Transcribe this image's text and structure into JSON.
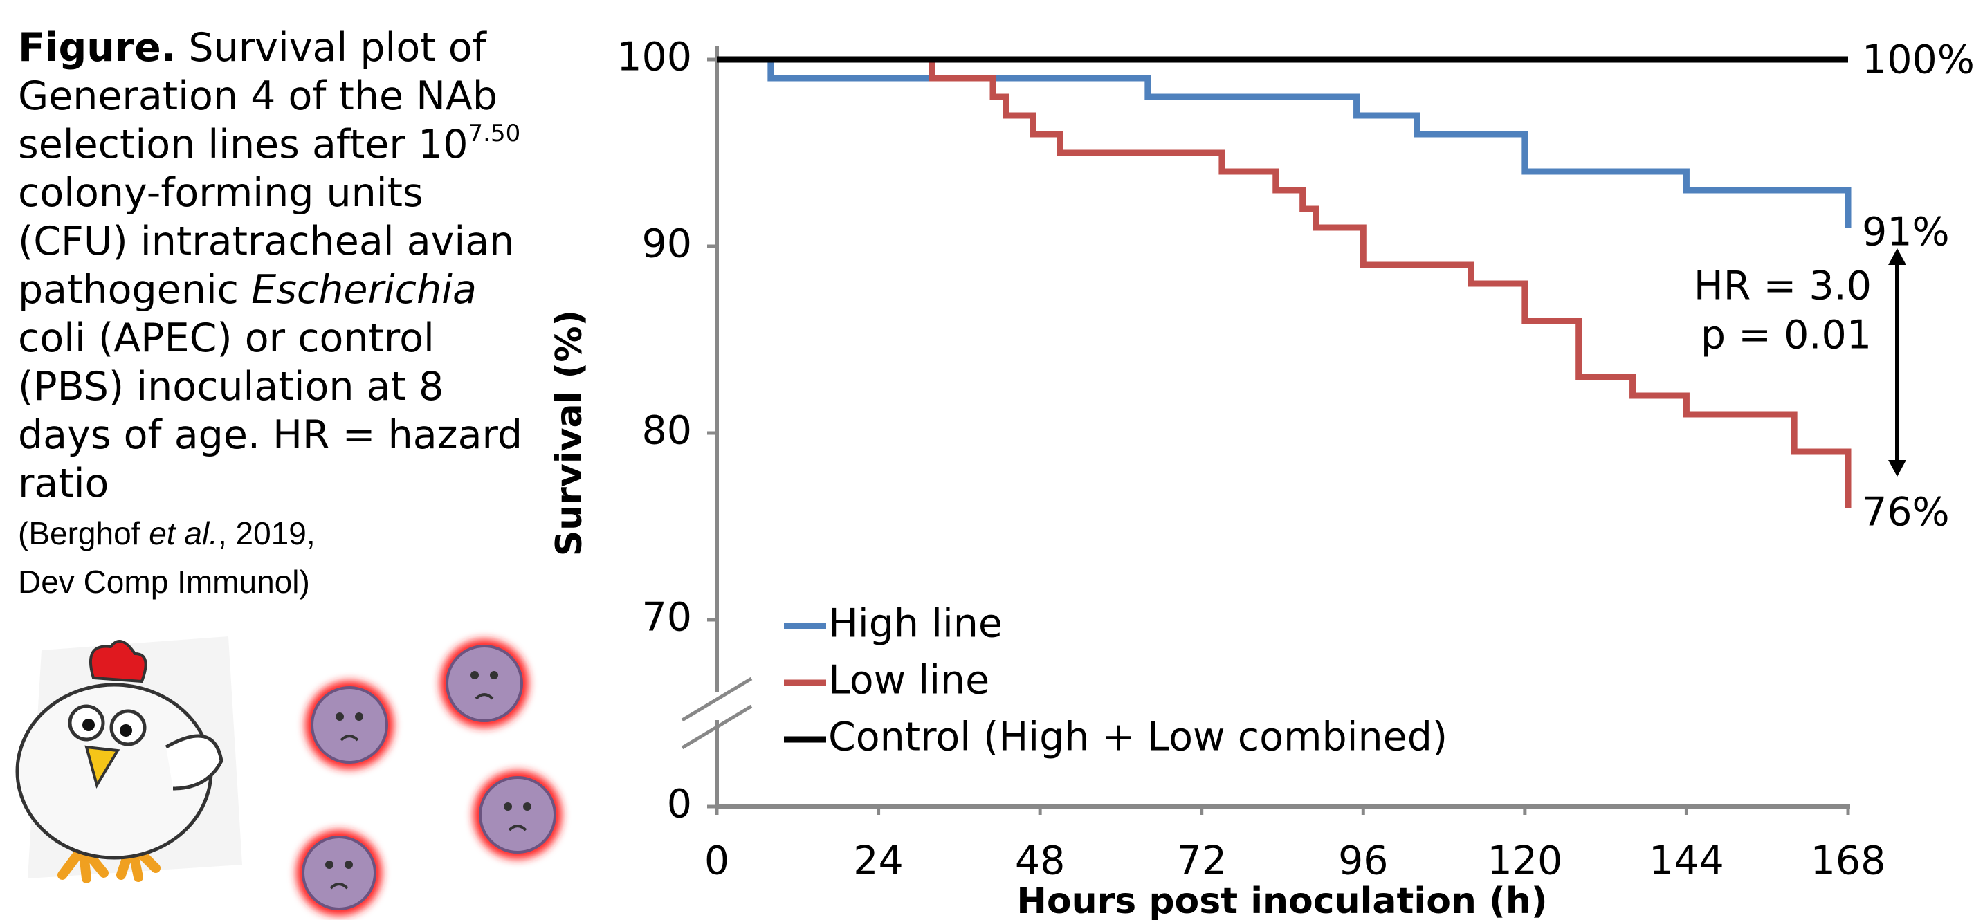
{
  "caption": {
    "label": "Figure.",
    "text": [
      "Survival plot of Generation 4 of the NAb selection lines after 10",
      "7.50",
      " colony-forming units (CFU) intratracheal avian pathogenic ",
      "Escherichia",
      " coli (APEC) or control (PBS) inoculation at 8 days of age. HR = hazard ratio"
    ],
    "citation": [
      "(Berghof ",
      "et al.",
      ", 2019,",
      "Dev Comp Immunol)"
    ]
  },
  "chart_data": {
    "type": "step",
    "y_label": "Survival (%)",
    "x_label": "Hours post inoculation (h)",
    "xlim": [
      0,
      168
    ],
    "xticks": [
      0,
      24,
      48,
      72,
      96,
      120,
      144,
      168
    ],
    "ylim": [
      0,
      100
    ],
    "yticks": [
      0,
      70,
      80,
      90,
      100
    ],
    "y_break": [
      0,
      70
    ],
    "legend": "lower left",
    "annotations": [
      "HR = 3.0",
      "p = 0.01"
    ],
    "series": [
      {
        "name": "High line",
        "color": "#4f81bd",
        "x": [
          0,
          8,
          64,
          95,
          104,
          120,
          144,
          168
        ],
        "values": [
          100,
          99,
          98,
          97,
          96,
          94,
          93,
          91
        ],
        "value_labels": [
          null,
          null,
          null,
          null,
          null,
          null,
          null,
          "91%"
        ]
      },
      {
        "name": "Low line",
        "color": "#c0504d",
        "x": [
          0,
          32,
          41,
          43,
          47,
          51,
          75,
          83,
          87,
          89,
          96,
          112,
          120,
          128,
          136,
          144,
          160,
          168
        ],
        "values": [
          100,
          99,
          98,
          97,
          96,
          95,
          94,
          93,
          92,
          91,
          89,
          88,
          86,
          83,
          82,
          81,
          79,
          76
        ],
        "value_labels": [
          null,
          null,
          null,
          null,
          null,
          null,
          null,
          null,
          null,
          null,
          null,
          null,
          null,
          null,
          null,
          null,
          null,
          "76%"
        ]
      },
      {
        "name": "Control (High + Low combined)",
        "color": "#000000",
        "x": [
          0,
          168
        ],
        "values": [
          100,
          100
        ],
        "value_labels": [
          null,
          "100%"
        ]
      }
    ]
  }
}
